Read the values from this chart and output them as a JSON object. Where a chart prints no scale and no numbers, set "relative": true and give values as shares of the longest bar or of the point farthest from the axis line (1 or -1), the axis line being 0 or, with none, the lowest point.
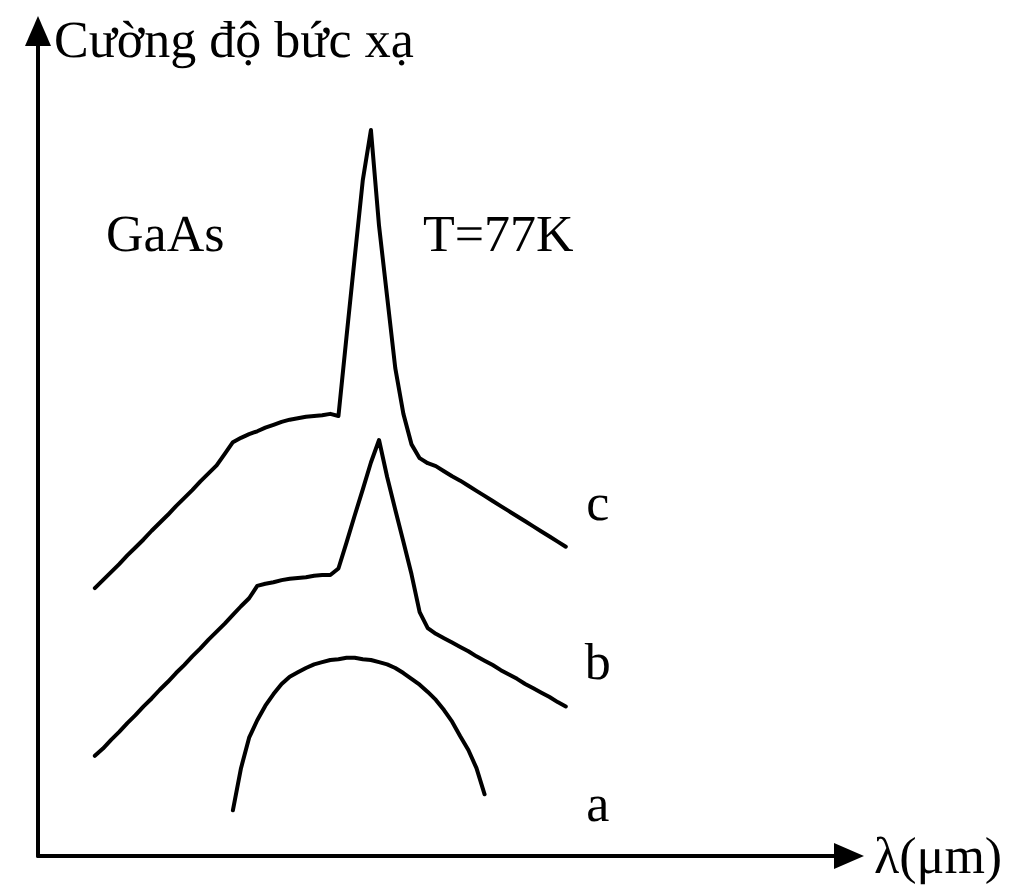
{
  "chart_data": {
    "type": "line",
    "relative": true,
    "xlabel": "λ(μm)",
    "ylabel": "Cường độ bức xạ",
    "annotations": [
      "GaAs",
      "T=77K"
    ],
    "marker": "none",
    "line_style": "solid",
    "categories": [
      null,
      null,
      null,
      null,
      null,
      null,
      null,
      null,
      null,
      null,
      null,
      null,
      null,
      null,
      null,
      null,
      null,
      null,
      null,
      null,
      null,
      null,
      null,
      null,
      null,
      null,
      null,
      null,
      null,
      null,
      null,
      null,
      null,
      null,
      null,
      null,
      null,
      null,
      null,
      null,
      null,
      null,
      null,
      null,
      null,
      null,
      null,
      null,
      null,
      null,
      null,
      null,
      null,
      null,
      null,
      null,
      null,
      null,
      null,
      null,
      null,
      null,
      null,
      null,
      null,
      null,
      null,
      null,
      null,
      null,
      null,
      null,
      null,
      null,
      null,
      null,
      null,
      null,
      null,
      null,
      null,
      null,
      null,
      null,
      null,
      null,
      null,
      null,
      null,
      null,
      null,
      null,
      null,
      null,
      null,
      null,
      null,
      null,
      null,
      null,
      null
    ],
    "series": [
      {
        "name": "a",
        "color": "#000000",
        "values": [
          null,
          null,
          null,
          null,
          null,
          null,
          null,
          null,
          null,
          null,
          null,
          null,
          null,
          null,
          null,
          null,
          null,
          null,
          null,
          null,
          null,
          null,
          null,
          null,
          0.063,
          0.121,
          0.163,
          0.187,
          0.207,
          0.223,
          0.237,
          0.247,
          0.253,
          0.259,
          0.264,
          0.267,
          0.27,
          0.271,
          0.273,
          0.273,
          0.271,
          0.27,
          0.267,
          0.264,
          0.259,
          0.252,
          0.244,
          0.236,
          0.226,
          0.215,
          0.201,
          0.185,
          0.165,
          0.146,
          0.121,
          0.085,
          null,
          null,
          null,
          null,
          null,
          null,
          null,
          null,
          null,
          null,
          null,
          null,
          null,
          null,
          null,
          null,
          null,
          null,
          null,
          null,
          null,
          null,
          null,
          null,
          null,
          null,
          null,
          null,
          null,
          null,
          null,
          null,
          null,
          null,
          null,
          null,
          null,
          null,
          null,
          null,
          null,
          null,
          null,
          null,
          null
        ]
      },
      {
        "name": "b",
        "color": "#000000",
        "values": [
          null,
          null,
          null,
          null,
          null,
          null,
          null,
          0.138,
          0.148,
          0.16,
          0.171,
          0.183,
          0.194,
          0.206,
          0.217,
          0.229,
          0.24,
          0.252,
          0.263,
          0.275,
          0.286,
          0.298,
          0.309,
          0.32,
          0.332,
          0.344,
          0.355,
          0.372,
          0.375,
          0.377,
          0.38,
          0.382,
          0.383,
          0.384,
          0.386,
          0.387,
          0.387,
          0.396,
          0.432,
          0.469,
          0.505,
          0.542,
          0.573,
          0.522,
          0.477,
          0.433,
          0.388,
          0.336,
          0.314,
          0.306,
          0.3,
          0.294,
          0.288,
          0.282,
          0.275,
          0.269,
          0.263,
          0.256,
          0.25,
          0.244,
          0.237,
          0.231,
          0.225,
          0.219,
          0.212,
          0.206,
          null,
          null,
          null,
          null,
          null,
          null,
          null,
          null,
          null,
          null,
          null,
          null,
          null,
          null,
          null,
          null,
          null,
          null,
          null,
          null,
          null,
          null,
          null,
          null,
          null,
          null,
          null,
          null,
          null,
          null,
          null,
          null,
          null,
          null,
          null
        ]
      },
      {
        "name": "c",
        "color": "#000000",
        "values": [
          null,
          null,
          null,
          null,
          null,
          null,
          null,
          0.369,
          0.38,
          0.391,
          0.402,
          0.414,
          0.425,
          0.436,
          0.448,
          0.459,
          0.47,
          0.482,
          0.493,
          0.504,
          0.516,
          0.527,
          0.538,
          0.554,
          0.57,
          0.576,
          0.581,
          0.585,
          0.59,
          0.594,
          0.598,
          0.601,
          0.603,
          0.605,
          0.606,
          0.607,
          0.609,
          0.606,
          0.716,
          0.824,
          0.931,
          1,
          0.868,
          0.77,
          0.672,
          0.609,
          0.567,
          0.548,
          0.541,
          0.537,
          0.53,
          0.523,
          0.517,
          0.51,
          0.503,
          0.496,
          0.489,
          0.482,
          0.475,
          0.468,
          0.461,
          0.454,
          0.447,
          0.44,
          0.433,
          0.426,
          null,
          null,
          null,
          null,
          null,
          null,
          null,
          null,
          null,
          null,
          null,
          null,
          null,
          null,
          null,
          null,
          null,
          null,
          null,
          null,
          null,
          null,
          null,
          null,
          null,
          null,
          null,
          null,
          null,
          null,
          null,
          null,
          null,
          null,
          null
        ]
      }
    ]
  }
}
